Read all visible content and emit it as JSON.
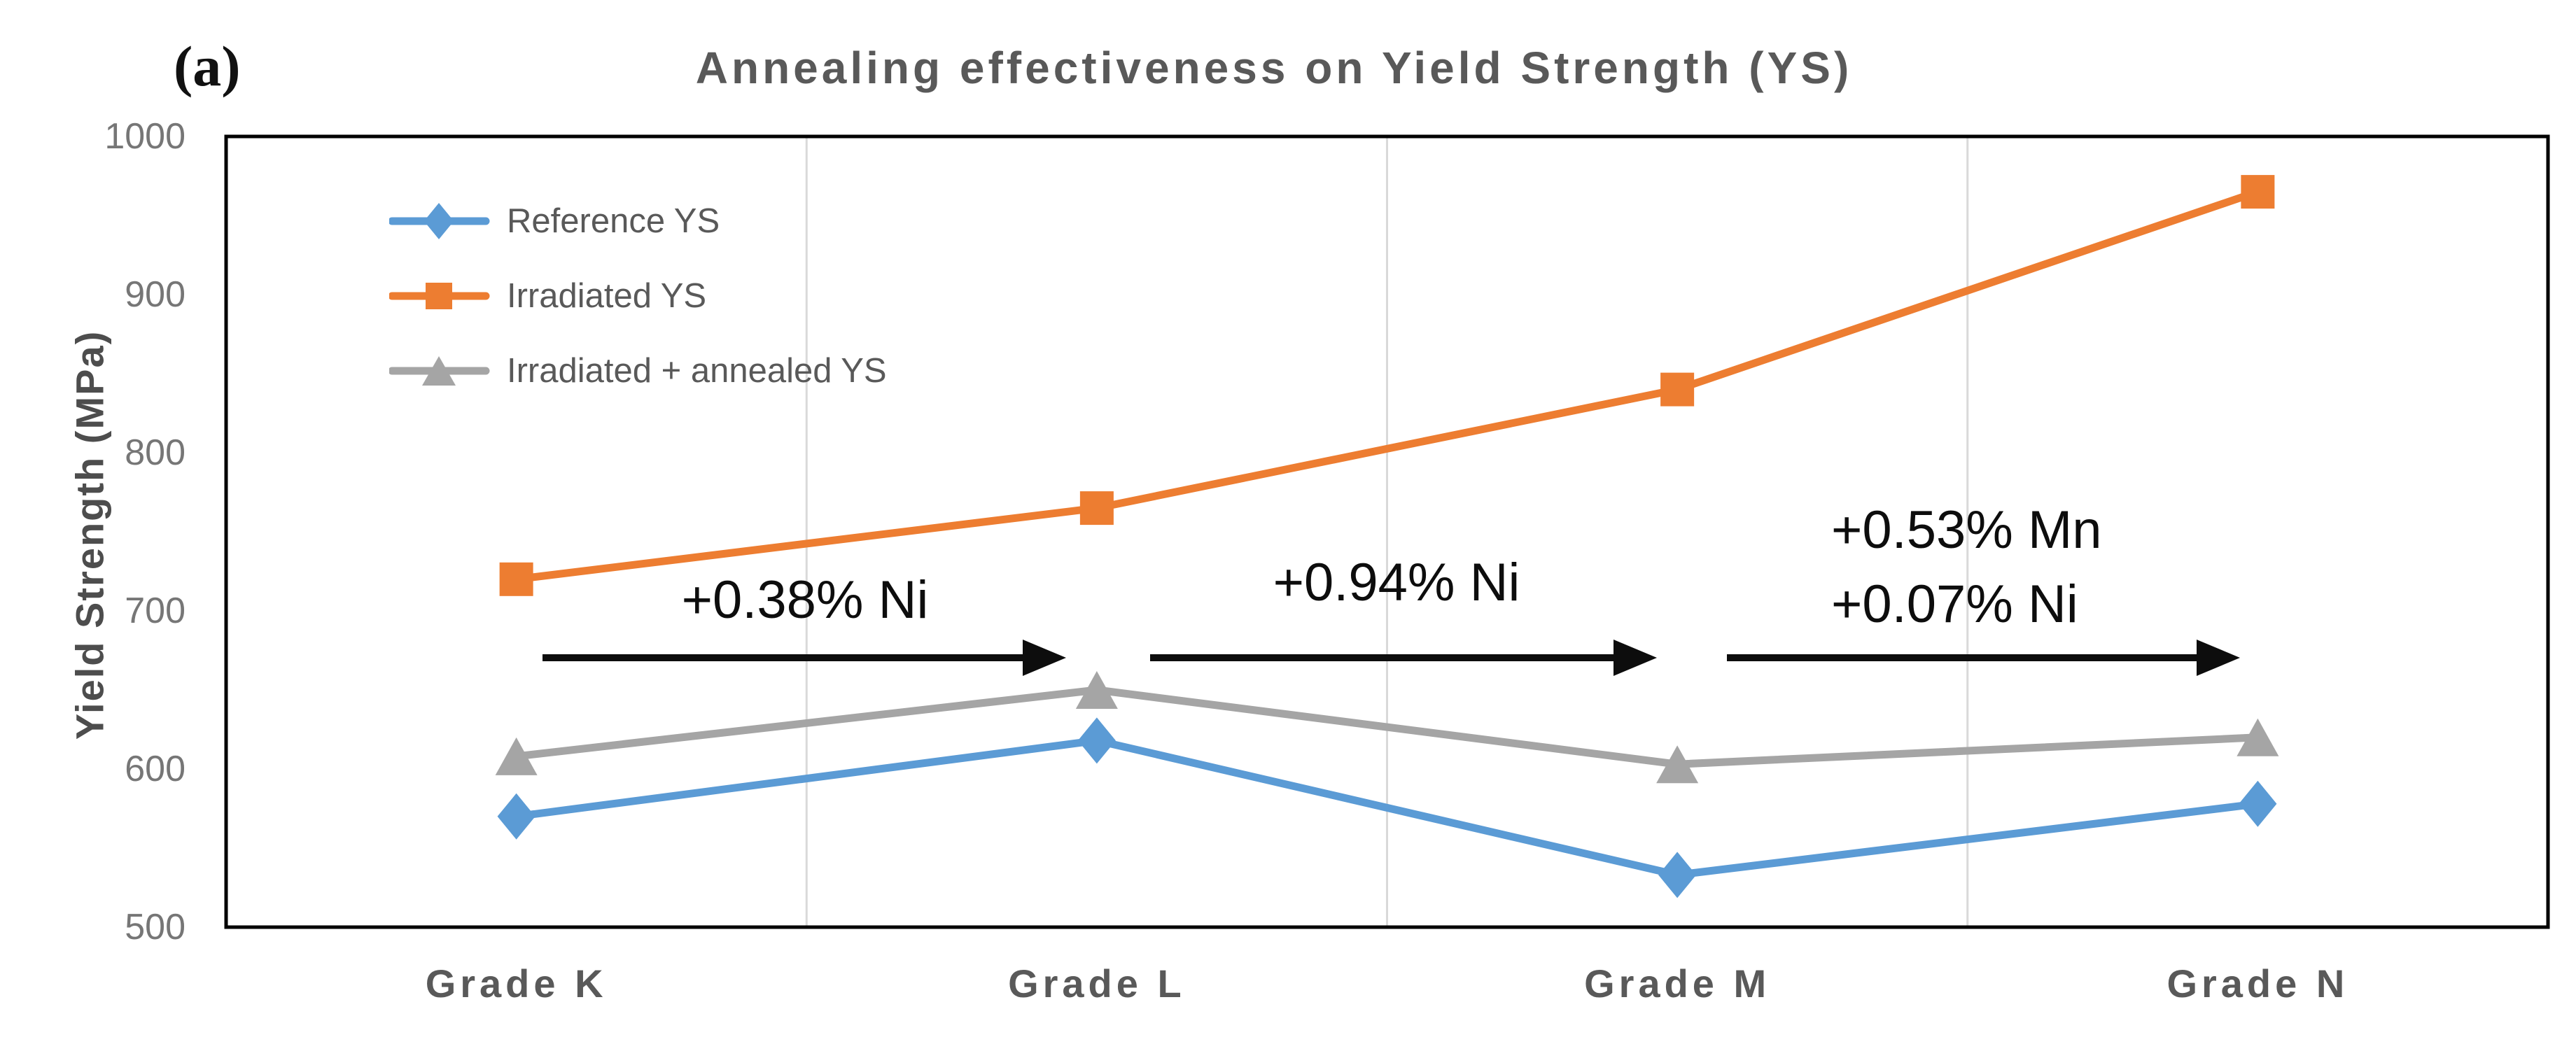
{
  "panel_label": "(a)",
  "chart_data": {
    "type": "line",
    "title": "Annealing effectiveness on Yield Strength (YS)",
    "ylabel": "Yield Strength (MPa)",
    "ylim": [
      500,
      1000
    ],
    "yticks": [
      1000,
      900,
      800,
      700,
      600,
      500
    ],
    "categories": [
      "Grade K",
      "Grade L",
      "Grade M",
      "Grade N"
    ],
    "series": [
      {
        "name": "Reference YS",
        "color": "#5B9BD5",
        "marker": "diamond",
        "values": [
          570,
          618,
          533,
          578
        ]
      },
      {
        "name": "Irradiated YS",
        "color": "#ED7D31",
        "marker": "square",
        "values": [
          720,
          765,
          840,
          965
        ]
      },
      {
        "name": "Irradiated + annealed YS",
        "color": "#A5A5A5",
        "marker": "triangle",
        "values": [
          608,
          650,
          603,
          620
        ]
      }
    ],
    "annotations": [
      {
        "lines": [
          "+0.38% Ni"
        ]
      },
      {
        "lines": [
          "+0.94% Ni"
        ]
      },
      {
        "lines": [
          "+0.53% Mn",
          "+0.07% Ni"
        ]
      }
    ],
    "legend_position": "top-left-inside",
    "grid": "vertical-category-boundaries",
    "axis_color": "#000000",
    "gridline_color": "#d9d9d9",
    "annotation_arrow_color": "#0d0d0d"
  }
}
